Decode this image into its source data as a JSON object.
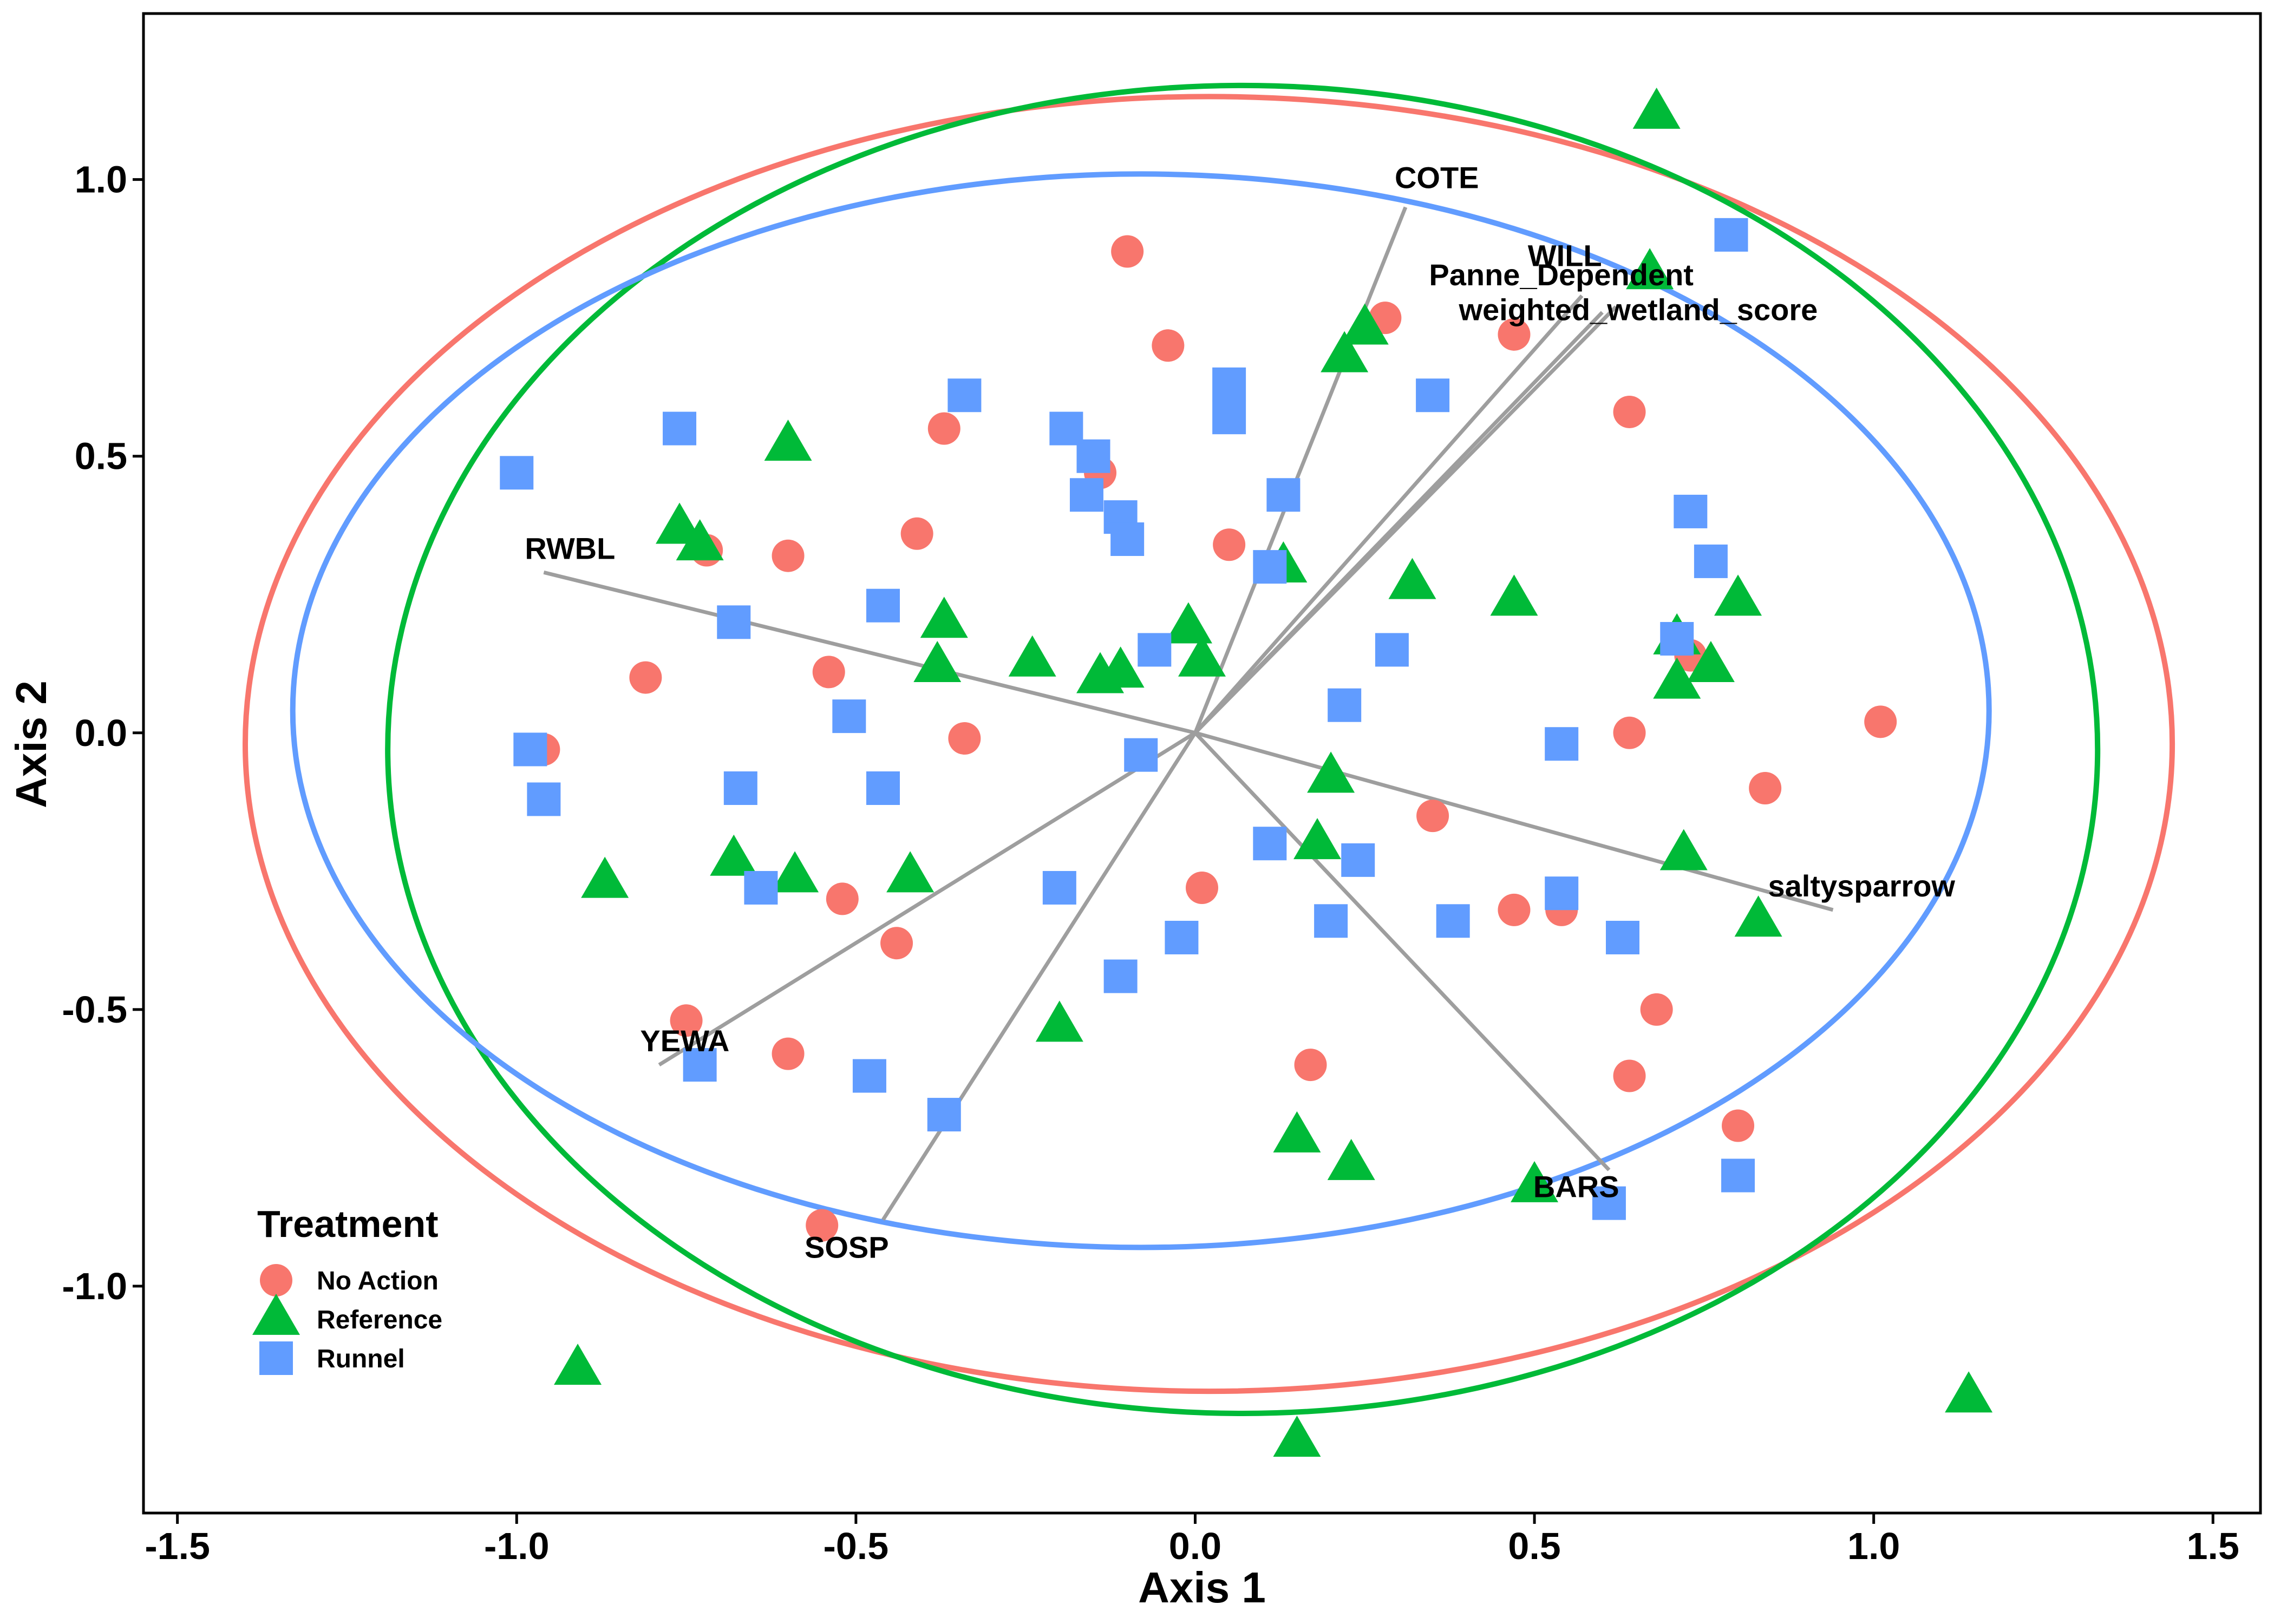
{
  "chart_data": {
    "type": "scatter",
    "title": "",
    "xlabel": "Axis 1",
    "ylabel": "Axis 2",
    "xlim": [
      -1.55,
      1.57
    ],
    "ylim": [
      -1.41,
      1.3
    ],
    "xticks": [
      -1.5,
      -1.0,
      -0.5,
      0.0,
      0.5,
      1.0,
      1.5
    ],
    "xtick_labels": [
      "-1.5",
      "-1.0",
      "-0.5",
      "0.0",
      "0.5",
      "1.0",
      "1.5"
    ],
    "yticks": [
      -1.0,
      -0.5,
      0.0,
      0.5,
      1.0
    ],
    "ytick_labels": [
      "-1.0",
      "-0.5",
      "0.0",
      "0.5",
      "1.0"
    ],
    "grid": false,
    "legend": {
      "title": "Treatment",
      "position": "bottom-left inside",
      "entries": [
        "No Action",
        "Reference",
        "Runnel"
      ]
    },
    "series": [
      {
        "name": "No Action",
        "shape": "circle",
        "color": "#F8766D",
        "ellipse": {
          "cx": 0.02,
          "cy": -0.02,
          "rx": 1.42,
          "ry": 1.17
        },
        "points": [
          [
            -0.1,
            0.87
          ],
          [
            -0.04,
            0.7
          ],
          [
            0.28,
            0.75
          ],
          [
            0.47,
            0.72
          ],
          [
            -0.37,
            0.55
          ],
          [
            -0.14,
            0.47
          ],
          [
            0.64,
            0.58
          ],
          [
            -0.72,
            0.33
          ],
          [
            -0.6,
            0.32
          ],
          [
            -0.41,
            0.36
          ],
          [
            0.05,
            0.34
          ],
          [
            -0.81,
            0.1
          ],
          [
            -0.54,
            0.11
          ],
          [
            0.73,
            0.14
          ],
          [
            1.01,
            0.02
          ],
          [
            -0.96,
            -0.03
          ],
          [
            -0.34,
            -0.01
          ],
          [
            0.64,
            0.0
          ],
          [
            0.84,
            -0.1
          ],
          [
            0.35,
            -0.15
          ],
          [
            -0.52,
            -0.3
          ],
          [
            0.01,
            -0.28
          ],
          [
            0.47,
            -0.32
          ],
          [
            0.54,
            -0.32
          ],
          [
            -0.44,
            -0.38
          ],
          [
            0.68,
            -0.5
          ],
          [
            -0.75,
            -0.52
          ],
          [
            -0.6,
            -0.58
          ],
          [
            0.17,
            -0.6
          ],
          [
            0.64,
            -0.62
          ],
          [
            0.8,
            -0.71
          ],
          [
            -0.55,
            -0.89
          ]
        ]
      },
      {
        "name": "Reference",
        "shape": "triangle",
        "color": "#00BA38",
        "ellipse": {
          "cx": 0.07,
          "cy": -0.03,
          "rx": 1.26,
          "ry": 1.2
        },
        "points": [
          [
            0.68,
            1.12
          ],
          [
            0.67,
            0.83
          ],
          [
            0.25,
            0.73
          ],
          [
            0.22,
            0.68
          ],
          [
            -0.6,
            0.52
          ],
          [
            -0.76,
            0.37
          ],
          [
            -0.73,
            0.34
          ],
          [
            0.13,
            0.3
          ],
          [
            0.32,
            0.27
          ],
          [
            0.47,
            0.24
          ],
          [
            0.8,
            0.24
          ],
          [
            -0.37,
            0.2
          ],
          [
            -0.01,
            0.19
          ],
          [
            0.71,
            0.17
          ],
          [
            -0.24,
            0.13
          ],
          [
            -0.38,
            0.12
          ],
          [
            -0.14,
            0.1
          ],
          [
            -0.11,
            0.11
          ],
          [
            0.01,
            0.13
          ],
          [
            0.76,
            0.12
          ],
          [
            0.71,
            0.09
          ],
          [
            0.2,
            -0.08
          ],
          [
            0.18,
            -0.2
          ],
          [
            0.72,
            -0.22
          ],
          [
            -0.87,
            -0.27
          ],
          [
            -0.68,
            -0.23
          ],
          [
            -0.59,
            -0.26
          ],
          [
            -0.42,
            -0.26
          ],
          [
            0.83,
            -0.34
          ],
          [
            -0.2,
            -0.53
          ],
          [
            0.15,
            -0.73
          ],
          [
            0.23,
            -0.78
          ],
          [
            0.5,
            -0.82
          ],
          [
            -0.91,
            -1.15
          ],
          [
            0.15,
            -1.28
          ],
          [
            1.14,
            -1.2
          ]
        ]
      },
      {
        "name": "Runnel",
        "shape": "square",
        "color": "#619CFF",
        "ellipse": {
          "cx": -0.08,
          "cy": 0.04,
          "rx": 1.25,
          "ry": 0.97
        },
        "points": [
          [
            0.79,
            0.9
          ],
          [
            0.05,
            0.63
          ],
          [
            0.05,
            0.57
          ],
          [
            -0.34,
            0.61
          ],
          [
            0.35,
            0.61
          ],
          [
            -0.76,
            0.55
          ],
          [
            -0.19,
            0.55
          ],
          [
            -0.15,
            0.5
          ],
          [
            -1.0,
            0.47
          ],
          [
            -0.16,
            0.43
          ],
          [
            -0.11,
            0.39
          ],
          [
            0.13,
            0.43
          ],
          [
            0.73,
            0.4
          ],
          [
            -0.1,
            0.35
          ],
          [
            0.11,
            0.3
          ],
          [
            0.76,
            0.31
          ],
          [
            -0.46,
            0.23
          ],
          [
            -0.68,
            0.2
          ],
          [
            0.71,
            0.17
          ],
          [
            0.29,
            0.15
          ],
          [
            -0.06,
            0.15
          ],
          [
            0.22,
            0.05
          ],
          [
            -0.51,
            0.03
          ],
          [
            0.54,
            -0.02
          ],
          [
            -0.98,
            -0.03
          ],
          [
            -0.08,
            -0.04
          ],
          [
            -0.96,
            -0.12
          ],
          [
            -0.67,
            -0.1
          ],
          [
            -0.46,
            -0.1
          ],
          [
            0.11,
            -0.2
          ],
          [
            0.24,
            -0.23
          ],
          [
            -0.64,
            -0.28
          ],
          [
            -0.2,
            -0.28
          ],
          [
            0.54,
            -0.29
          ],
          [
            0.2,
            -0.34
          ],
          [
            0.38,
            -0.34
          ],
          [
            -0.02,
            -0.37
          ],
          [
            0.63,
            -0.37
          ],
          [
            -0.11,
            -0.44
          ],
          [
            -0.73,
            -0.6
          ],
          [
            -0.48,
            -0.62
          ],
          [
            -0.37,
            -0.69
          ],
          [
            0.8,
            -0.8
          ],
          [
            0.61,
            -0.85
          ]
        ]
      }
    ],
    "vectors": [
      {
        "label": "COTE",
        "x": 0.31,
        "y": 0.95
      },
      {
        "label": "WILL",
        "x": 0.57,
        "y": 0.79
      },
      {
        "label": "Panne_Dependent",
        "x": 0.6,
        "y": 0.76
      },
      {
        "label": "weighted_wetland_score",
        "x": 0.62,
        "y": 0.77
      },
      {
        "label": "RWBL",
        "x": -0.96,
        "y": 0.29
      },
      {
        "label": "saltysparrow",
        "x": 0.94,
        "y": -0.32
      },
      {
        "label": "YEWA",
        "x": -0.79,
        "y": -0.6
      },
      {
        "label": "BARS",
        "x": 0.61,
        "y": -0.79
      },
      {
        "label": "SOSP",
        "x": -0.46,
        "y": -0.88
      }
    ]
  }
}
